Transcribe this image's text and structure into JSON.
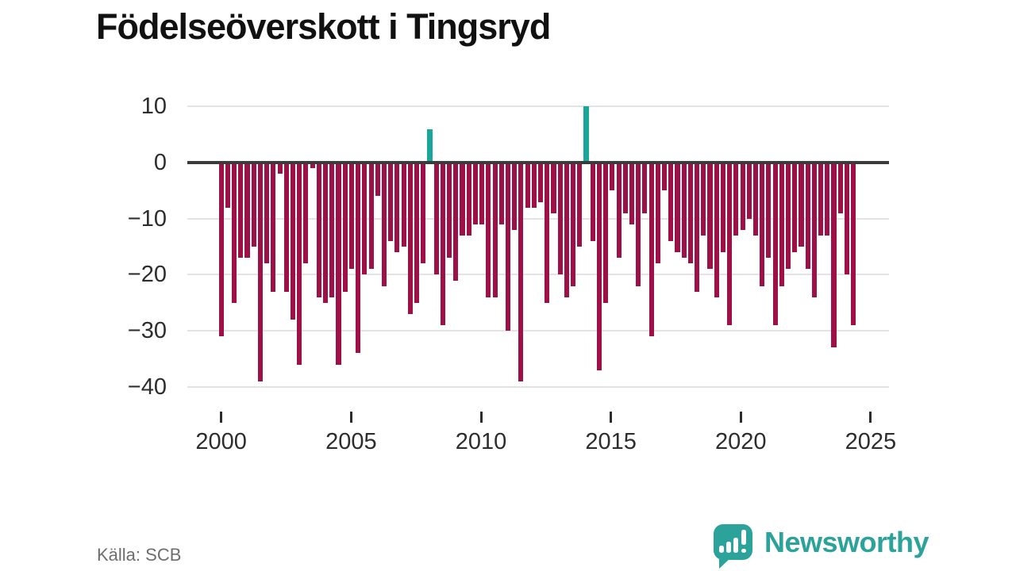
{
  "title": "Födelseöverskott i Tingsryd",
  "source": "Källa: SCB",
  "logo": {
    "wordmark": "Newsworthy",
    "icon": "newsworthy-speech-bubble-barchart-icon"
  },
  "colors": {
    "negative_bar": "#9d1048",
    "positive_bar": "#1aa69a",
    "zero_line": "#3b3b3b",
    "gridline": "#e3e3e3",
    "title_text": "#111111",
    "axis_text": "#2d2d2d",
    "source_text": "#6e6e6e",
    "logo_teal": "#2ba39a"
  },
  "chart_data": {
    "type": "bar",
    "title": "Födelseöverskott i Tingsryd",
    "xlabel": "",
    "ylabel": "",
    "frequency": "quarterly",
    "x_start": "2000Q1",
    "x_end": "2024Q2",
    "values": [
      -31,
      -8,
      -25,
      -17,
      -17,
      -15,
      -39,
      -18,
      -23,
      -2,
      -23,
      -28,
      -36,
      -18,
      -1,
      -24,
      -25,
      -24,
      -36,
      -23,
      -19,
      -34,
      -20,
      -19,
      -6,
      -22,
      -14,
      -16,
      -15,
      -27,
      -25,
      -18,
      6,
      -20,
      -29,
      -17,
      -21,
      -13,
      -13,
      -11,
      -11,
      -24,
      -24,
      -11,
      -30,
      -12,
      -39,
      -8,
      -8,
      -7,
      -25,
      -9,
      -20,
      -24,
      -22,
      -15,
      10,
      -14,
      -37,
      -25,
      -5,
      -17,
      -9,
      -11,
      -22,
      -9,
      -31,
      -18,
      -5,
      -14,
      -16,
      -17,
      -18,
      -23,
      -13,
      -19,
      -24,
      -16,
      -29,
      -13,
      -12,
      -10,
      -13,
      -22,
      -17,
      -29,
      -22,
      -19,
      -16,
      -15,
      -19,
      -24,
      -13,
      -13,
      -33,
      -9,
      -20,
      -29
    ],
    "xticks": [
      2000,
      2005,
      2010,
      2015,
      2020,
      2025
    ],
    "yticks": [
      10,
      0,
      -10,
      -20,
      -30,
      -40
    ],
    "ylim": [
      -42,
      12
    ],
    "grid": "horizontal",
    "legend": "none",
    "positive_bars_at": [
      "2008Q1",
      "2014Q1"
    ]
  }
}
